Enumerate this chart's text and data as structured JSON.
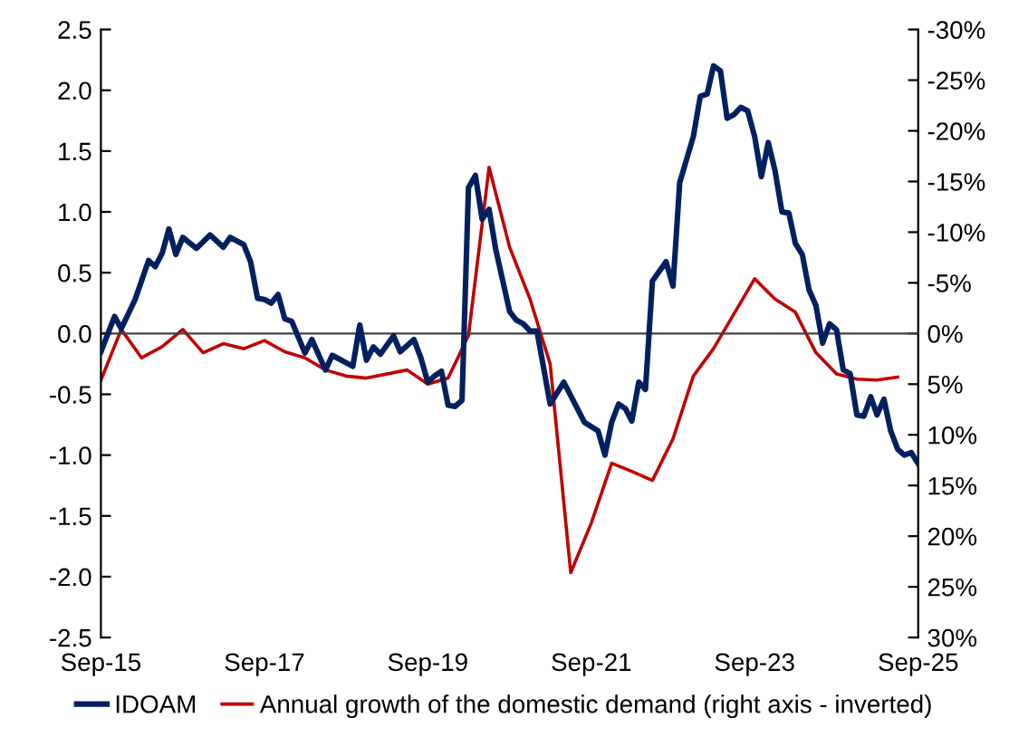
{
  "chart_data": {
    "type": "line",
    "xlim": [
      "2015-09",
      "2025-09"
    ],
    "xticks": [
      {
        "value": "2015-09",
        "label": "Sep-15"
      },
      {
        "value": "2017-09",
        "label": "Sep-17"
      },
      {
        "value": "2019-09",
        "label": "Sep-19"
      },
      {
        "value": "2021-09",
        "label": "Sep-21"
      },
      {
        "value": "2023-09",
        "label": "Sep-23"
      },
      {
        "value": "2025-09",
        "label": "Sep-25"
      }
    ],
    "ylim": [
      -2.5,
      2.5
    ],
    "yticks": [
      {
        "value": -2.5,
        "label": "-2.5"
      },
      {
        "value": -2.0,
        "label": "-2.0"
      },
      {
        "value": -1.5,
        "label": "-1.5"
      },
      {
        "value": -1.0,
        "label": "-1.0"
      },
      {
        "value": -0.5,
        "label": "-0.5"
      },
      {
        "value": 0.0,
        "label": "0.0"
      },
      {
        "value": 0.5,
        "label": "0.5"
      },
      {
        "value": 1.0,
        "label": "1.0"
      },
      {
        "value": 1.5,
        "label": "1.5"
      },
      {
        "value": 2.0,
        "label": "2.0"
      },
      {
        "value": 2.5,
        "label": "2.5"
      }
    ],
    "y2lim": [
      30,
      -30
    ],
    "y2ticks": [
      {
        "value": -30,
        "label": "-30%"
      },
      {
        "value": -25,
        "label": "-25%"
      },
      {
        "value": -20,
        "label": "-20%"
      },
      {
        "value": -15,
        "label": "-15%"
      },
      {
        "value": -10,
        "label": "-10%"
      },
      {
        "value": -5,
        "label": "-5%"
      },
      {
        "value": 0,
        "label": "0%"
      },
      {
        "value": 5,
        "label": "5%"
      },
      {
        "value": 10,
        "label": "10%"
      },
      {
        "value": 15,
        "label": "15%"
      },
      {
        "value": 20,
        "label": "20%"
      },
      {
        "value": 25,
        "label": "25%"
      },
      {
        "value": 30,
        "label": "30%"
      }
    ],
    "ref_lines": [
      {
        "axis": "y",
        "value": 0,
        "color": "#404040",
        "line_style": "solid"
      }
    ],
    "grid": false,
    "legend": "bottom",
    "series": [
      {
        "name": "IDOAM",
        "color": "#002060",
        "axis": "y",
        "x": [
          "2015-09",
          "2015-11",
          "2015-12",
          "2016-02",
          "2016-04",
          "2016-05",
          "2016-06",
          "2016-07",
          "2016-08",
          "2016-09",
          "2016-11",
          "2017-01",
          "2017-03",
          "2017-04",
          "2017-06",
          "2017-07",
          "2017-08",
          "2017-09",
          "2017-10",
          "2017-11",
          "2017-12",
          "2018-01",
          "2018-03",
          "2018-04",
          "2018-06",
          "2018-07",
          "2018-08",
          "2018-10",
          "2018-11",
          "2018-12",
          "2019-01",
          "2019-02",
          "2019-04",
          "2019-05",
          "2019-07",
          "2019-08",
          "2019-09",
          "2019-10",
          "2019-11",
          "2019-12",
          "2020-01",
          "2020-02",
          "2020-03",
          "2020-04",
          "2020-05",
          "2020-06",
          "2020-07",
          "2020-09",
          "2020-10",
          "2020-11",
          "2020-12",
          "2021-01",
          "2021-03",
          "2021-05",
          "2021-08",
          "2021-10",
          "2021-11",
          "2021-12",
          "2022-01",
          "2022-02",
          "2022-03",
          "2022-04",
          "2022-05",
          "2022-06",
          "2022-08",
          "2022-09",
          "2022-10",
          "2022-12",
          "2023-01",
          "2023-02",
          "2023-03",
          "2023-04",
          "2023-05",
          "2023-06",
          "2023-07",
          "2023-08",
          "2023-09",
          "2023-10",
          "2023-11",
          "2023-12",
          "2024-01",
          "2024-02",
          "2024-03",
          "2024-04",
          "2024-05",
          "2024-06",
          "2024-07",
          "2024-08",
          "2024-09",
          "2024-10",
          "2024-11",
          "2024-12",
          "2025-01",
          "2025-02",
          "2025-03",
          "2025-04",
          "2025-05",
          "2025-06",
          "2025-07",
          "2025-08",
          "2025-09"
        ],
        "values": [
          -0.15,
          0.14,
          0.04,
          0.28,
          0.6,
          0.55,
          0.66,
          0.86,
          0.65,
          0.79,
          0.7,
          0.81,
          0.71,
          0.79,
          0.73,
          0.59,
          0.29,
          0.28,
          0.25,
          0.32,
          0.12,
          0.1,
          -0.16,
          -0.05,
          -0.3,
          -0.18,
          -0.21,
          -0.27,
          0.07,
          -0.22,
          -0.11,
          -0.17,
          -0.02,
          -0.15,
          -0.05,
          -0.2,
          -0.4,
          -0.35,
          -0.31,
          -0.59,
          -0.6,
          -0.55,
          1.2,
          1.3,
          0.94,
          1.02,
          0.69,
          0.18,
          0.11,
          0.08,
          0.02,
          0.02,
          -0.58,
          -0.4,
          -0.73,
          -0.8,
          -1.0,
          -0.73,
          -0.58,
          -0.62,
          -0.72,
          -0.4,
          -0.46,
          0.43,
          0.59,
          0.39,
          1.24,
          1.62,
          1.95,
          1.97,
          2.2,
          2.16,
          1.77,
          1.8,
          1.86,
          1.83,
          1.62,
          1.29,
          1.57,
          1.34,
          1.0,
          0.99,
          0.74,
          0.65,
          0.36,
          0.23,
          -0.08,
          0.08,
          0.03,
          -0.3,
          -0.33,
          -0.67,
          -0.68,
          -0.52,
          -0.67,
          -0.54,
          -0.8,
          -0.95,
          -1.0,
          -0.98,
          -1.07
        ]
      },
      {
        "name": "Annual growth of the domestic demand (right axis - inverted)",
        "color": "#c00000",
        "axis": "y2",
        "x": [
          "2015-09",
          "2015-12",
          "2016-03",
          "2016-06",
          "2016-09",
          "2016-12",
          "2017-03",
          "2017-06",
          "2017-09",
          "2017-12",
          "2018-03",
          "2018-06",
          "2018-09",
          "2018-12",
          "2019-06",
          "2019-09",
          "2019-12",
          "2020-03",
          "2020-06",
          "2020-09",
          "2020-12",
          "2021-03",
          "2021-06",
          "2021-09",
          "2021-12",
          "2022-03",
          "2022-06",
          "2022-09",
          "2022-12",
          "2023-03",
          "2023-09",
          "2023-12",
          "2024-03",
          "2024-06",
          "2024-09",
          "2024-12",
          "2025-03",
          "2025-06"
        ],
        "values": [
          4.6,
          -0.4,
          2.4,
          1.3,
          -0.4,
          1.9,
          1.0,
          1.5,
          0.7,
          1.8,
          2.4,
          3.6,
          4.2,
          4.4,
          3.6,
          5.0,
          4.4,
          0.2,
          -16.4,
          -8.5,
          -3.4,
          3.0,
          23.6,
          18.7,
          12.8,
          13.6,
          14.5,
          10.4,
          4.2,
          1.5,
          -5.4,
          -3.4,
          -2.1,
          1.9,
          4.0,
          4.5,
          4.6,
          4.3
        ]
      }
    ]
  }
}
